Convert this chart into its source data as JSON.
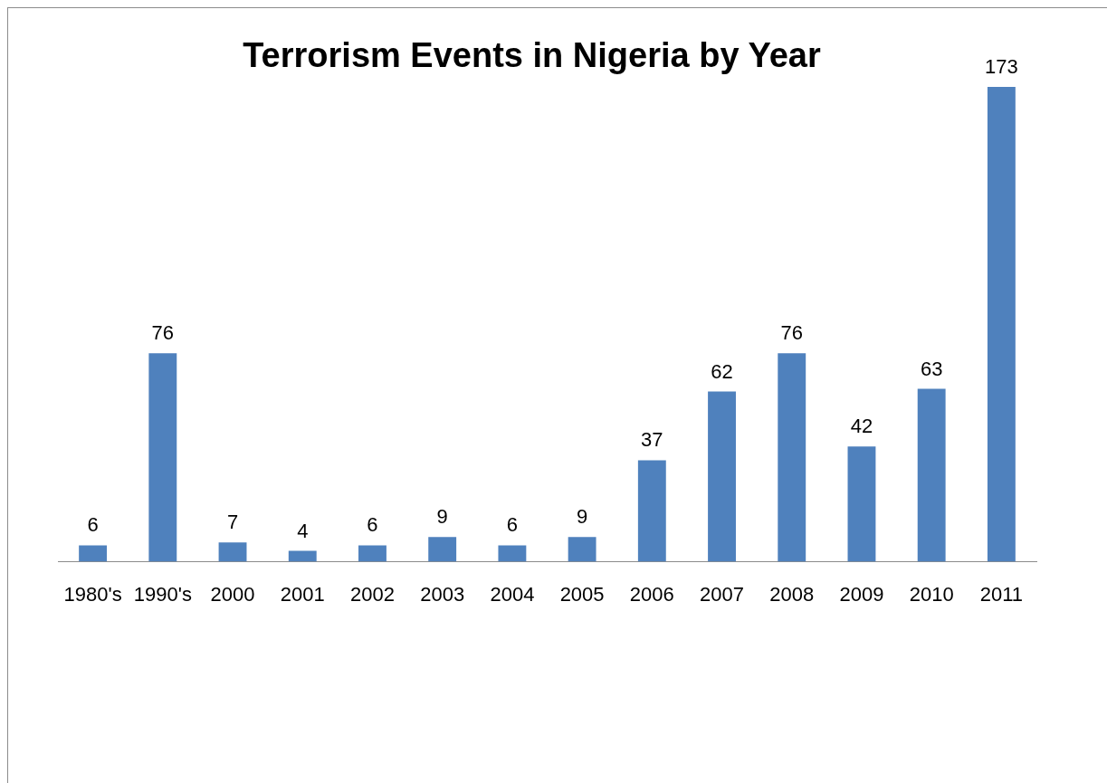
{
  "chart_data": {
    "type": "bar",
    "title": "Terrorism Events in Nigeria by Year",
    "categories": [
      "1980's",
      "1990's",
      "2000",
      "2001",
      "2002",
      "2003",
      "2004",
      "2005",
      "2006",
      "2007",
      "2008",
      "2009",
      "2010",
      "2011"
    ],
    "values": [
      6,
      76,
      7,
      4,
      6,
      9,
      6,
      9,
      37,
      62,
      76,
      42,
      63,
      173
    ],
    "color": "#4f81bd",
    "data_labels": true,
    "grid": false,
    "legend": false
  }
}
